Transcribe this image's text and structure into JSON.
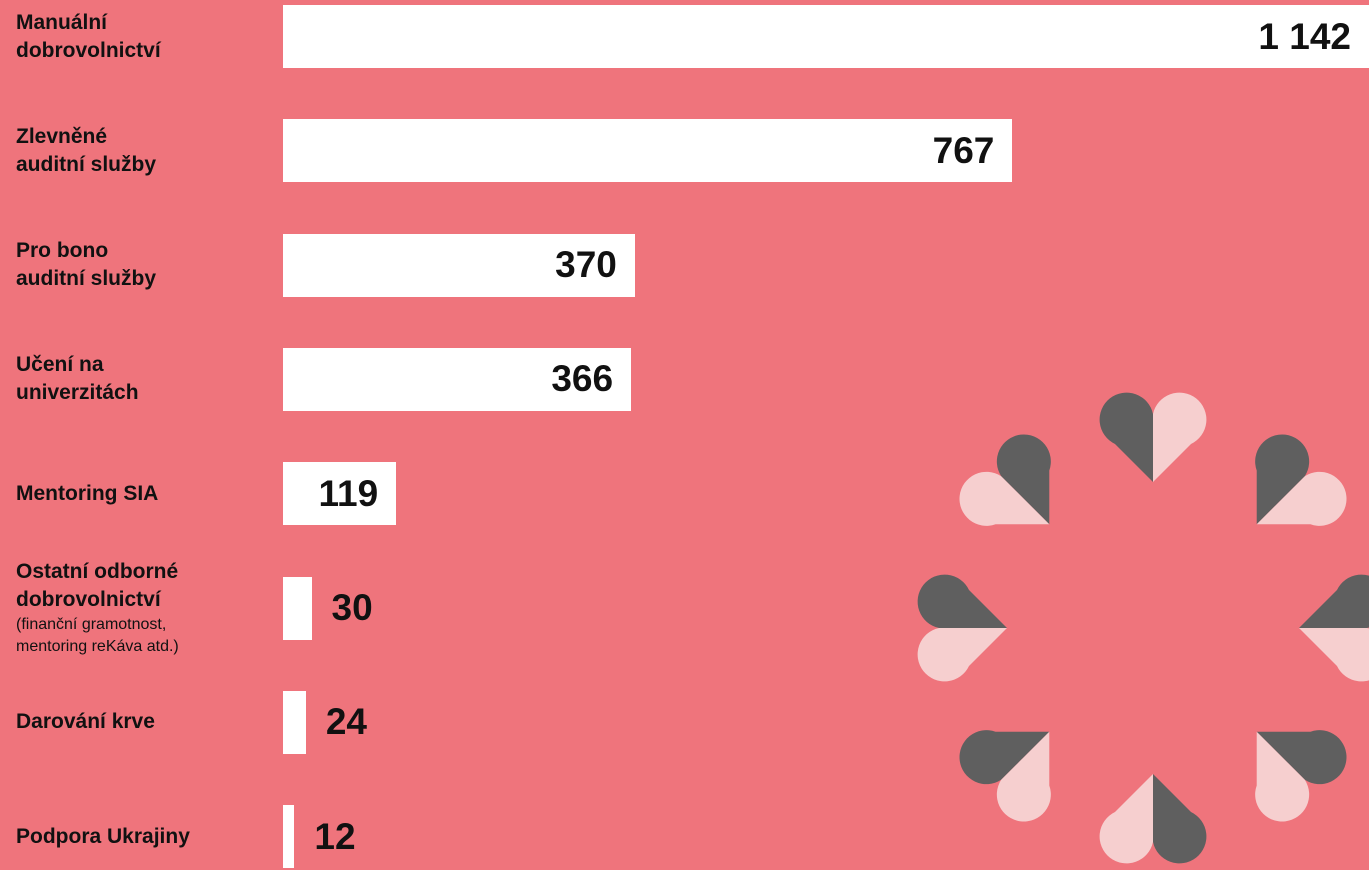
{
  "chart_data": {
    "type": "bar",
    "orientation": "horizontal",
    "categories": [
      "Manuální\ndobrovolnictví",
      "Zlevněné\nauditní služby",
      "Pro bono\nauditní služby",
      "Učení na\nuniverzitách",
      "Mentoring SIA",
      "Ostatní odborné\ndobrovolnictví",
      "Darování krve",
      "Podpora Ukrajiny"
    ],
    "category_notes": [
      null,
      null,
      null,
      null,
      null,
      "(finanční gramotnost,\nmentoring reKáva atd.)",
      null,
      null
    ],
    "values": [
      1142,
      767,
      370,
      366,
      119,
      30,
      24,
      12
    ],
    "value_labels": [
      "1 142",
      "767",
      "370",
      "366",
      "119",
      "30",
      "24",
      "12"
    ],
    "color": "#ffffff"
  }
}
